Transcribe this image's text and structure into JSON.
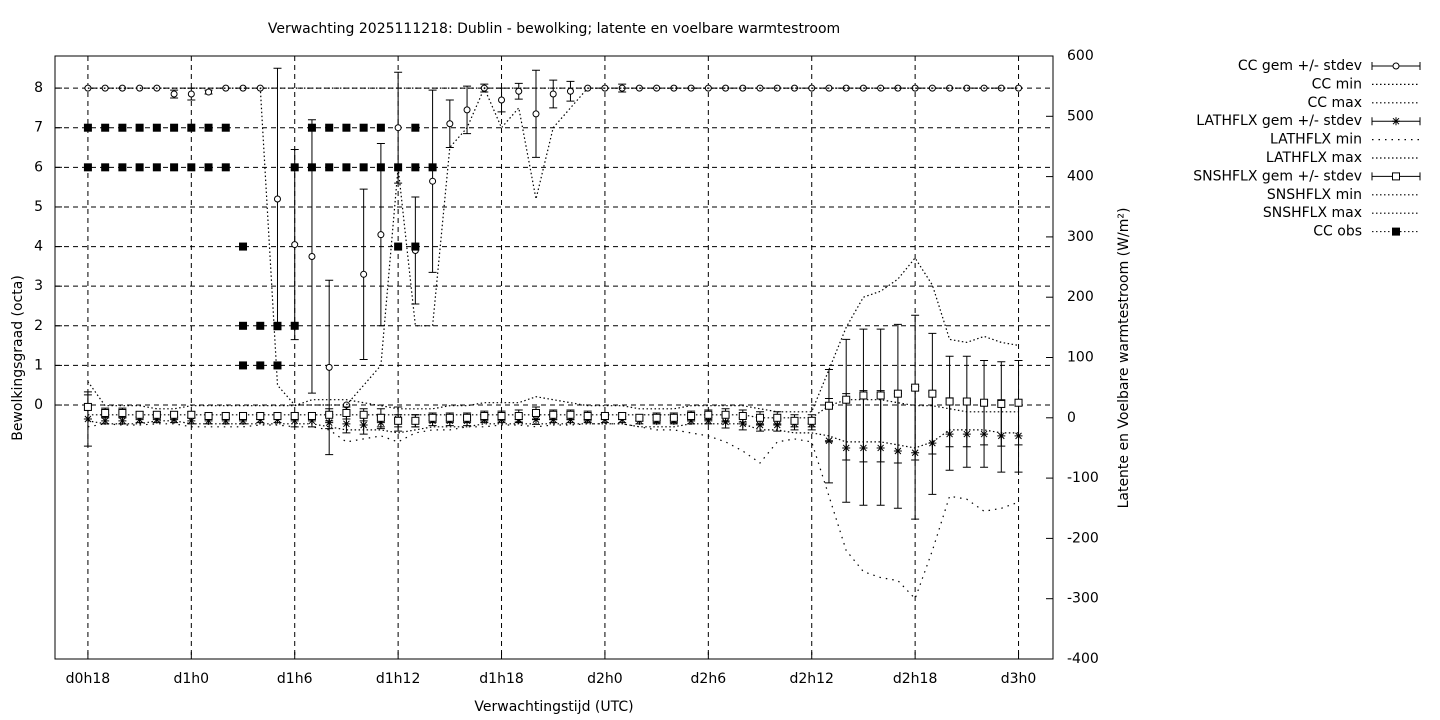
{
  "chart_data": {
    "type": "errorbar-line",
    "title": "Verwachting 2025111218: Dublin - bewolking; latente en voelbare warmtestroom",
    "xlabel": "Verwachtingstijd (UTC)",
    "ylabel": "Bewolkingsgraad (octa)",
    "y2label": "Latente en Voelbare warmtestroom (W/m²)",
    "x": [
      0,
      1,
      2,
      3,
      4,
      5,
      6,
      7,
      8,
      9,
      10,
      11,
      12,
      13,
      14,
      15,
      16,
      17,
      18,
      19,
      20,
      21,
      22,
      23,
      24,
      25,
      26,
      27,
      28,
      29,
      30,
      31,
      32,
      33,
      34,
      35,
      36,
      37,
      38,
      39,
      40,
      41,
      42,
      43,
      44,
      45,
      46,
      47,
      48,
      49,
      50,
      51,
      52,
      53,
      54
    ],
    "xlim": [
      -1.91,
      56.0
    ],
    "xticks": [
      {
        "value": 0,
        "label": "d0h18"
      },
      {
        "value": 6,
        "label": "d1h0"
      },
      {
        "value": 12,
        "label": "d1h6"
      },
      {
        "value": 18,
        "label": "d1h12"
      },
      {
        "value": 24,
        "label": "d1h18"
      },
      {
        "value": 30,
        "label": "d2h0"
      },
      {
        "value": 36,
        "label": "d2h6"
      },
      {
        "value": 42,
        "label": "d2h12"
      },
      {
        "value": 48,
        "label": "d2h18"
      },
      {
        "value": 54,
        "label": "d3h0"
      }
    ],
    "ylim": [
      -6.41,
      8.81
    ],
    "yticks": [
      0,
      1,
      2,
      3,
      4,
      5,
      6,
      7,
      8
    ],
    "y2lim": [
      -400,
      600
    ],
    "y2ticks": [
      -400,
      -300,
      -200,
      -100,
      0,
      100,
      200,
      300,
      400,
      500,
      600
    ],
    "grid": true,
    "legend": "outside-top-right",
    "series": [
      {
        "name": "CC gem +/- stdev",
        "axis": "y",
        "marker": "circle",
        "color": "#000000",
        "values": [
          8,
          8,
          8,
          8,
          8,
          7.85,
          7.85,
          7.9,
          8,
          8,
          8,
          5.2,
          4.05,
          3.75,
          0.95,
          0,
          3.3,
          4.3,
          7,
          3.9,
          5.65,
          7.1,
          7.45,
          8,
          7.7,
          7.92,
          7.35,
          7.85,
          7.92,
          8,
          8,
          8,
          8,
          8,
          8,
          8,
          8,
          8,
          8,
          8,
          8,
          8,
          8,
          8,
          8,
          8,
          8,
          8,
          8,
          8,
          8,
          8,
          8,
          8,
          8
        ],
        "errors": [
          0,
          0,
          0,
          0,
          0,
          0.1,
          0.15,
          0.05,
          0,
          0,
          0,
          3.3,
          2.4,
          3.45,
          2.2,
          0,
          2.15,
          2.3,
          1.4,
          1.35,
          2.3,
          0.6,
          0.6,
          0.1,
          0.3,
          0.2,
          1.1,
          0.35,
          0.25,
          0,
          0,
          0.1,
          0,
          0,
          0,
          0,
          0,
          0,
          0,
          0,
          0,
          0,
          0,
          0,
          0,
          0,
          0,
          0,
          0,
          0,
          0,
          0,
          0,
          0,
          0
        ]
      },
      {
        "name": "CC min",
        "axis": "y",
        "line": "dotted",
        "color": "#000000",
        "values": [
          8,
          8,
          8,
          8,
          8,
          8,
          8,
          8,
          8,
          8,
          8,
          0.5,
          0,
          0,
          0,
          0,
          0.5,
          1,
          6,
          2,
          2,
          6.5,
          7,
          8,
          7,
          7.5,
          5.2,
          7,
          7.5,
          8,
          8,
          8,
          8,
          8,
          8,
          8,
          8,
          8,
          8,
          8,
          8,
          8,
          8,
          8,
          8,
          8,
          8,
          8,
          8,
          8,
          8,
          8,
          8,
          8,
          8
        ]
      },
      {
        "name": "CC max",
        "axis": "y",
        "line": "dotted",
        "color": "#000000",
        "values": [
          8,
          8,
          8,
          8,
          8,
          8,
          8,
          8,
          8,
          8,
          8,
          8,
          8,
          8,
          8,
          8,
          8,
          8,
          8,
          8,
          8,
          8,
          8,
          8,
          8,
          8,
          8,
          8,
          8,
          8,
          8,
          8,
          8,
          8,
          8,
          8,
          8,
          8,
          8,
          8,
          8,
          8,
          8,
          8,
          8,
          8,
          8,
          8,
          8,
          8,
          8,
          8,
          8,
          8,
          8
        ]
      },
      {
        "name": "LATHFLX gem +/- stdev",
        "axis": "y2",
        "marker": "asterisk",
        "color": "#000000",
        "values": [
          -2,
          -5,
          -5,
          -3,
          -3,
          -3,
          -5,
          -5,
          -5,
          -5,
          -3,
          -3,
          -5,
          -5,
          -8,
          -10,
          -12,
          -8,
          -2,
          -5,
          -5,
          -5,
          -5,
          -3,
          -3,
          -3,
          -3,
          -3,
          -3,
          -3,
          -3,
          -3,
          -5,
          -5,
          -5,
          -5,
          -5,
          -7,
          -10,
          -12,
          -12,
          -10,
          -10,
          -38,
          -50,
          -50,
          -50,
          -55,
          -58,
          -42,
          -27,
          -27,
          -27,
          -30,
          -30
        ],
        "errors": [
          45,
          5,
          5,
          5,
          5,
          5,
          5,
          5,
          5,
          5,
          5,
          5,
          10,
          10,
          10,
          15,
          15,
          10,
          20,
          10,
          8,
          8,
          8,
          5,
          5,
          5,
          8,
          5,
          5,
          5,
          5,
          5,
          5,
          5,
          5,
          5,
          5,
          10,
          10,
          10,
          10,
          10,
          10,
          70,
          90,
          95,
          95,
          95,
          110,
          85,
          60,
          55,
          55,
          60,
          60
        ]
      },
      {
        "name": "LATHFLX min",
        "axis": "y2",
        "line": "dotted-sparse",
        "color": "#000000",
        "values": [
          -15,
          -10,
          -12,
          -12,
          -10,
          -10,
          -15,
          -15,
          -15,
          -15,
          -12,
          -12,
          -15,
          -15,
          -20,
          -40,
          -35,
          -30,
          -40,
          -25,
          -20,
          -20,
          -15,
          -15,
          -12,
          -12,
          -15,
          -12,
          -12,
          -10,
          -10,
          -10,
          -15,
          -20,
          -20,
          -25,
          -30,
          -40,
          -55,
          -75,
          -40,
          -35,
          -40,
          -130,
          -220,
          -255,
          -265,
          -270,
          -300,
          -220,
          -130,
          -135,
          -155,
          -150,
          -140
        ]
      },
      {
        "name": "LATHFLX max",
        "axis": "y2",
        "line": "dotted",
        "color": "#000000",
        "values": [
          5,
          5,
          5,
          5,
          5,
          5,
          5,
          5,
          5,
          5,
          5,
          5,
          5,
          5,
          5,
          5,
          5,
          5,
          5,
          5,
          5,
          5,
          5,
          5,
          5,
          5,
          5,
          5,
          5,
          5,
          5,
          5,
          5,
          5,
          5,
          5,
          5,
          5,
          5,
          0,
          0,
          0,
          0,
          20,
          30,
          30,
          30,
          25,
          20,
          20,
          15,
          10,
          10,
          10,
          10
        ]
      },
      {
        "name": "SNSHFLX gem +/- stdev",
        "axis": "y2",
        "marker": "square",
        "color": "#000000",
        "values": [
          18,
          8,
          8,
          5,
          5,
          5,
          5,
          3,
          3,
          3,
          3,
          3,
          3,
          3,
          5,
          8,
          5,
          0,
          -5,
          -5,
          0,
          0,
          0,
          3,
          3,
          3,
          8,
          5,
          5,
          3,
          3,
          3,
          0,
          0,
          0,
          3,
          5,
          5,
          3,
          0,
          0,
          -5,
          -5,
          20,
          30,
          37,
          37,
          40,
          50,
          40,
          27,
          27,
          25,
          23,
          25
        ],
        "errors": [
          20,
          8,
          8,
          5,
          5,
          5,
          5,
          5,
          5,
          5,
          5,
          5,
          5,
          5,
          10,
          10,
          10,
          15,
          10,
          10,
          8,
          8,
          8,
          8,
          8,
          10,
          10,
          8,
          8,
          8,
          5,
          5,
          5,
          8,
          8,
          8,
          8,
          10,
          10,
          10,
          10,
          10,
          10,
          60,
          100,
          110,
          110,
          115,
          120,
          100,
          75,
          75,
          70,
          70,
          70
        ]
      },
      {
        "name": "SNSHFLX min",
        "axis": "y2",
        "line": "dotted",
        "color": "#000000",
        "values": [
          -5,
          -10,
          -10,
          -10,
          -5,
          -5,
          -10,
          -10,
          -10,
          -10,
          -10,
          -10,
          -10,
          -10,
          -15,
          -20,
          -20,
          -20,
          -25,
          -20,
          -15,
          -15,
          -15,
          -10,
          -10,
          -10,
          -10,
          -10,
          -10,
          -10,
          -10,
          -10,
          -15,
          -15,
          -15,
          -10,
          -10,
          -10,
          -10,
          -20,
          -20,
          -25,
          -25,
          -30,
          -40,
          -40,
          -40,
          -45,
          -50,
          -40,
          -20,
          -20,
          -20,
          -25,
          -25
        ]
      },
      {
        "name": "SNSHFLX max",
        "axis": "y2",
        "line": "dotted",
        "color": "#000000",
        "values": [
          60,
          20,
          20,
          20,
          15,
          15,
          20,
          20,
          20,
          20,
          20,
          20,
          20,
          30,
          30,
          30,
          25,
          20,
          15,
          15,
          15,
          20,
          20,
          25,
          25,
          25,
          35,
          30,
          25,
          20,
          20,
          20,
          15,
          15,
          15,
          20,
          20,
          20,
          20,
          15,
          10,
          10,
          10,
          80,
          150,
          200,
          210,
          230,
          265,
          220,
          130,
          125,
          135,
          125,
          120
        ]
      },
      {
        "name": "CC obs",
        "axis": "y",
        "marker": "filled-square",
        "color": "#000000",
        "x": [
          0,
          0,
          1,
          1,
          2,
          2,
          3,
          3,
          4,
          4,
          5,
          5,
          6,
          6,
          7,
          7,
          8,
          8,
          9,
          9,
          9,
          10,
          10,
          11,
          11,
          12,
          12,
          13,
          13,
          14,
          14,
          15,
          15,
          16,
          16,
          17,
          17,
          18,
          18,
          19,
          19,
          19,
          20
        ],
        "values": [
          7,
          6,
          7,
          6,
          7,
          6,
          7,
          6,
          7,
          6,
          7,
          6,
          7,
          6,
          7,
          6,
          7,
          6,
          4,
          2,
          1,
          2,
          1,
          2,
          1,
          6,
          2,
          7,
          6,
          7,
          6,
          7,
          6,
          7,
          6,
          7,
          6,
          6,
          4,
          7,
          6,
          4,
          6
        ]
      }
    ]
  }
}
